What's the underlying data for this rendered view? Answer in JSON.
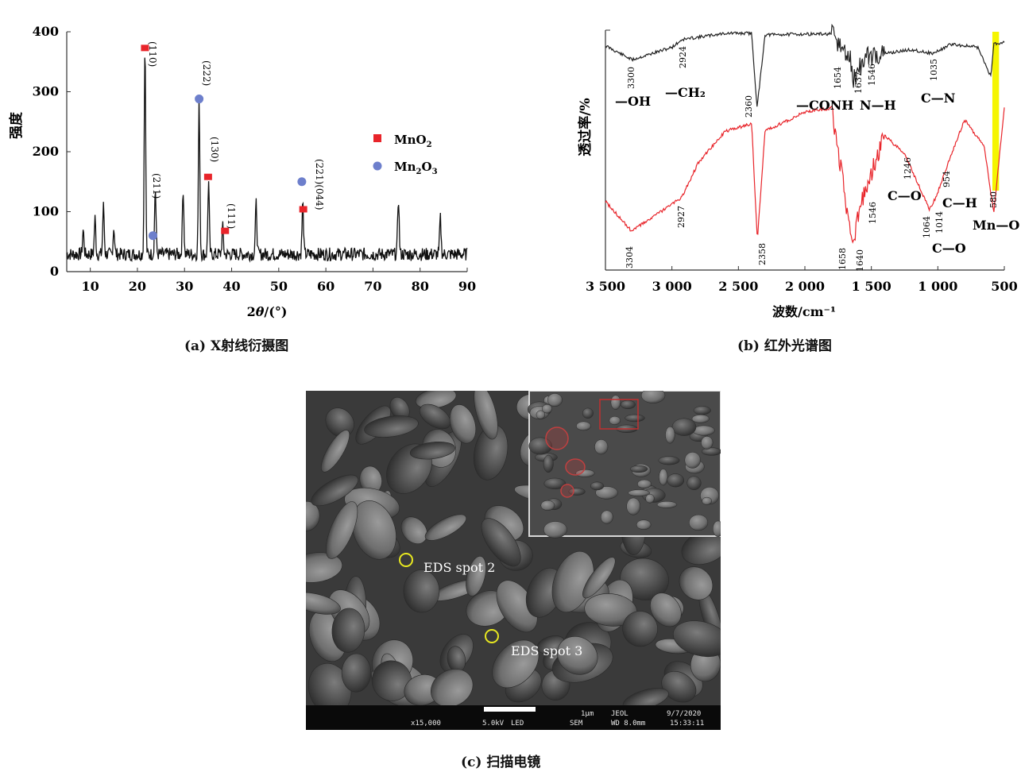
{
  "charts": {
    "xrd": {
      "xlabel_parts": [
        "2",
        "θ",
        "/(°)"
      ],
      "ylabel": "强度",
      "legend": [
        {
          "label_base": "MnO",
          "label_sub": "2",
          "color": "#e8242a",
          "marker": "square"
        },
        {
          "label_base": "Mn",
          "label_sub": "2",
          "label_mid": "O",
          "label_sub2": "3",
          "color": "#6d7fcc",
          "marker": "circle"
        }
      ],
      "peak_labels": [
        "(110)",
        "(211)",
        "(222)",
        "(130)",
        "(111)",
        "(221)(044)"
      ],
      "caption": "(a) X射线衍摄图"
    },
    "ir": {
      "xlabel": "波数/cm⁻¹",
      "ylabel": "透过率/%",
      "top_peak_labels": [
        "3300",
        "2924",
        "2360",
        "1654",
        "1637",
        "1546",
        "1035"
      ],
      "bottom_peak_labels": [
        "3304",
        "2927",
        "2358",
        "1658",
        "1640",
        "1546",
        "1246",
        "1064",
        "1014",
        "954",
        "580"
      ],
      "group_labels": [
        "—OH",
        "—CH₂",
        "—CONH",
        "N—H",
        "C—N",
        "C—O",
        "C—H",
        "C—O",
        "Mn—O"
      ],
      "highlight_color": "#f5f500",
      "caption": "(b) 红外光谱图"
    },
    "sem": {
      "spot_labels": [
        "EDS spot 2",
        "EDS spot 3"
      ],
      "info_line1": [
        "1μm",
        "JEOL",
        "9/7/2020"
      ],
      "info_line2": [
        "x15,000",
        "5.0kV",
        "LED",
        "SEM",
        "WD 8.0mm",
        "15:33:11"
      ],
      "caption": "(c) 扫描电镜"
    }
  },
  "chart_data": [
    {
      "type": "line",
      "xlim": [
        5,
        90
      ],
      "ylim": [
        0,
        400
      ],
      "xticks": [
        10,
        20,
        30,
        40,
        50,
        60,
        70,
        80,
        90
      ],
      "yticks": [
        0,
        100,
        200,
        300,
        400
      ],
      "peaks": [
        [
          8.5,
          60
        ],
        [
          11,
          80
        ],
        [
          12.8,
          100
        ],
        [
          15,
          65
        ],
        [
          21.6,
          370
        ],
        [
          23.8,
          130
        ],
        [
          29.7,
          130
        ],
        [
          33.1,
          275
        ],
        [
          35.1,
          140
        ],
        [
          38.1,
          65
        ],
        [
          45.2,
          105
        ],
        [
          55.1,
          105
        ],
        [
          75.4,
          115
        ],
        [
          84.3,
          80
        ]
      ],
      "markers": [
        {
          "series": "MnO2",
          "x": 21.6,
          "y": 373
        },
        {
          "series": "Mn2O3",
          "x": 23.3,
          "y": 60
        },
        {
          "series": "Mn2O3",
          "x": 33.1,
          "y": 288
        },
        {
          "series": "MnO2",
          "x": 35.0,
          "y": 158
        },
        {
          "series": "MnO2",
          "x": 38.6,
          "y": 68
        },
        {
          "series": "Mn2O3",
          "x": 54.9,
          "y": 150
        },
        {
          "series": "MnO2",
          "x": 55.2,
          "y": 104
        }
      ]
    },
    {
      "type": "line",
      "xlim": [
        3500,
        500
      ],
      "xticks": [
        3500,
        3000,
        2500,
        2000,
        1500,
        1000,
        500
      ],
      "xtick_labels": [
        "3 500",
        "3 000",
        "2 500",
        "2 000",
        "1 500",
        "1 000",
        "500"
      ],
      "series": [
        {
          "color": "#222222",
          "points": [
            [
              3500,
              20
            ],
            [
              3300,
              38
            ],
            [
              3000,
              22
            ],
            [
              2924,
              12
            ],
            [
              2600,
              4
            ],
            [
              2400,
              4
            ],
            [
              2360,
              100
            ],
            [
              2300,
              6
            ],
            [
              2000,
              5
            ],
            [
              1800,
              5
            ],
            [
              1654,
              40
            ],
            [
              1637,
              65
            ],
            [
              1546,
              35
            ],
            [
              1400,
              30
            ],
            [
              1200,
              25
            ],
            [
              1035,
              30
            ],
            [
              900,
              18
            ],
            [
              700,
              22
            ],
            [
              600,
              60
            ],
            [
              580,
              18
            ],
            [
              500,
              15
            ]
          ]
        },
        {
          "color": "#e8242a",
          "points": [
            [
              3500,
              220
            ],
            [
              3304,
              258
            ],
            [
              3100,
              235
            ],
            [
              2927,
              215
            ],
            [
              2800,
              170
            ],
            [
              2600,
              130
            ],
            [
              2400,
              120
            ],
            [
              2358,
              270
            ],
            [
              2300,
              130
            ],
            [
              2000,
              105
            ],
            [
              1800,
              100
            ],
            [
              1658,
              260
            ],
            [
              1640,
              270
            ],
            [
              1546,
              205
            ],
            [
              1400,
              135
            ],
            [
              1246,
              160
            ],
            [
              1064,
              230
            ],
            [
              1014,
              215
            ],
            [
              954,
              185
            ],
            [
              800,
              115
            ],
            [
              650,
              150
            ],
            [
              580,
              235
            ],
            [
              500,
              100
            ]
          ]
        }
      ],
      "highlight_band": [
        590,
        540
      ]
    }
  ]
}
